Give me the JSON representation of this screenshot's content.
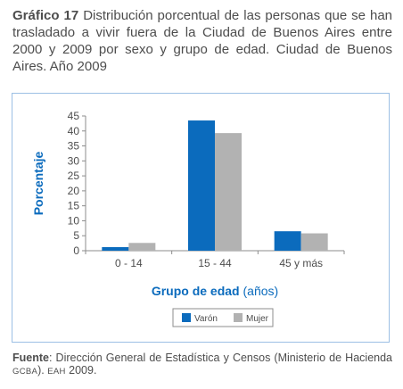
{
  "header": {
    "label": "Gráfico 17",
    "text": "Distribución porcentual de las personas que se han trasladado a vivir fuera de la Ciudad de Buenos Aires entre 2000 y 2009 por sexo y grupo de edad. Ciudad de Buenos Aires. Año 2009"
  },
  "footer": {
    "source_label": "Fuente",
    "text_1": ": Dirección General de Estadística y Censos (Ministerio de Hacienda ",
    "gcba": "GCBA",
    "text_2": "). ",
    "eah": "EAH",
    "text_3": " 2009."
  },
  "colors": {
    "varon": "#0b6bbd",
    "mujer": "#b2b2b2",
    "accent": "#0b6bbd",
    "frame": "#9cbfe4"
  },
  "chart_data": {
    "type": "bar",
    "categories": [
      "0 - 14",
      "15 - 44",
      "45 y más"
    ],
    "series": [
      {
        "name": "Varón",
        "values": [
          1.2,
          43.5,
          6.5
        ]
      },
      {
        "name": "Mujer",
        "values": [
          2.6,
          39.3,
          5.8
        ]
      }
    ],
    "xlabel": "Grupo de edad",
    "xlabel_unit": "(años)",
    "ylabel": "Porcentaje",
    "ylim": [
      0,
      45
    ],
    "yticks": [
      0,
      5,
      10,
      15,
      20,
      25,
      30,
      35,
      40,
      45
    ],
    "grid": false,
    "legend": "bottom-center"
  }
}
